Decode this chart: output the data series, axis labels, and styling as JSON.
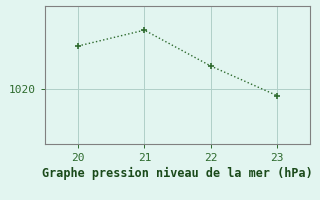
{
  "x": [
    20,
    21,
    22,
    23
  ],
  "y": [
    1026.2,
    1028.5,
    1023.3,
    1019.0
  ],
  "xlim": [
    19.5,
    23.5
  ],
  "ylim": [
    1012,
    1032
  ],
  "xticks": [
    20,
    21,
    22,
    23
  ],
  "yticks": [
    1020
  ],
  "line_color": "#2d6a2d",
  "marker": "+",
  "marker_size": 5,
  "marker_linewidth": 1.2,
  "linewidth": 1.0,
  "linestyle": ":",
  "bg_color": "#e2f5f0",
  "grid_color": "#b0cfc8",
  "grid_linewidth": 0.7,
  "xlabel": "Graphe pression niveau de la mer (hPa)",
  "xlabel_color": "#1a4a1a",
  "xlabel_fontsize": 8.5,
  "tick_fontsize": 8,
  "tick_color": "#2d6a2d",
  "spine_color": "#808080",
  "spine_linewidth": 0.8
}
